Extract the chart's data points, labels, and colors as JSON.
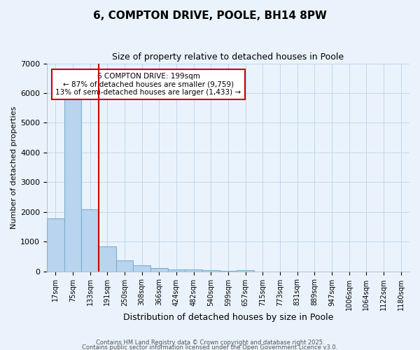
{
  "title": "6, COMPTON DRIVE, POOLE, BH14 8PW",
  "subtitle": "Size of property relative to detached houses in Poole",
  "xlabel": "Distribution of detached houses by size in Poole",
  "ylabel": "Number of detached properties",
  "bar_labels": [
    "17sqm",
    "75sqm",
    "133sqm",
    "191sqm",
    "250sqm",
    "308sqm",
    "366sqm",
    "424sqm",
    "482sqm",
    "540sqm",
    "599sqm",
    "657sqm",
    "715sqm",
    "773sqm",
    "831sqm",
    "889sqm",
    "947sqm",
    "1006sqm",
    "1064sqm",
    "1122sqm",
    "1180sqm"
  ],
  "bar_values": [
    1780,
    5800,
    2090,
    850,
    360,
    210,
    100,
    70,
    50,
    30,
    25,
    30,
    0,
    0,
    0,
    0,
    0,
    0,
    0,
    0,
    0
  ],
  "bar_color": "#b8d4ee",
  "bar_edge_color": "#7bafd4",
  "background_color": "#eaf3fc",
  "grid_color": "#c0d8f0",
  "property_label": "6 COMPTON DRIVE: 199sqm",
  "annotation_line1": "← 87% of detached houses are smaller (9,759)",
  "annotation_line2": "13% of semi-detached houses are larger (1,433) →",
  "annotation_box_color": "#ffffff",
  "annotation_box_edge": "#cc0000",
  "vline_color": "#cc0000",
  "ylim": [
    0,
    7000
  ],
  "yticks": [
    0,
    1000,
    2000,
    3000,
    4000,
    5000,
    6000,
    7000
  ],
  "title_fontsize": 11,
  "subtitle_fontsize": 9,
  "xlabel_fontsize": 9,
  "ylabel_fontsize": 8,
  "tick_fontsize": 7,
  "annotation_fontsize": 7.5,
  "footnote1": "Contains HM Land Registry data © Crown copyright and database right 2025.",
  "footnote2": "Contains public sector information licensed under the Open Government Licence v3.0."
}
